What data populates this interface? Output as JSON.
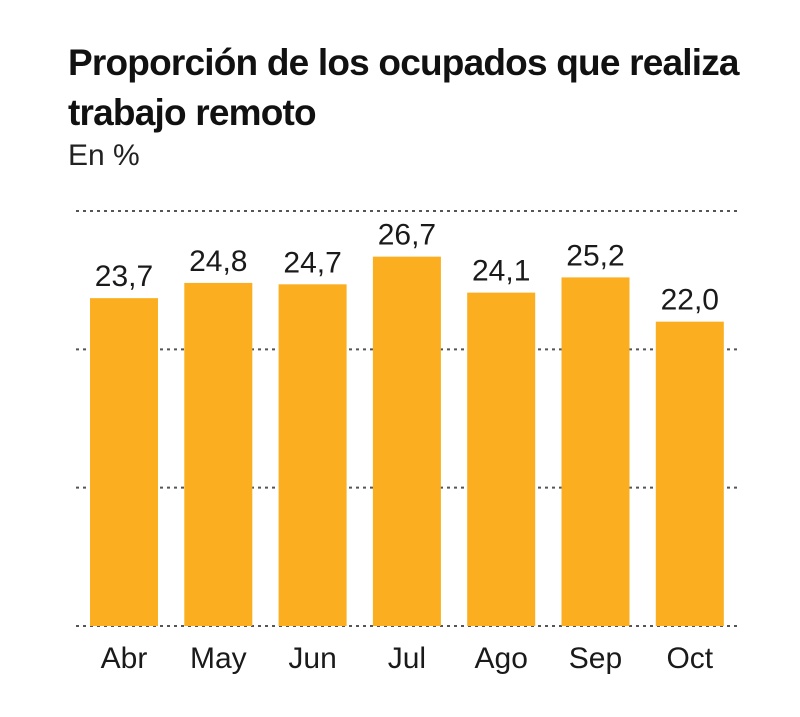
{
  "chart_data": {
    "type": "bar",
    "title": "Proporción de los ocupados que realiza trabajo remoto",
    "subtitle": "En %",
    "categories": [
      "Abr",
      "May",
      "Jun",
      "Jul",
      "Ago",
      "Sep",
      "Oct"
    ],
    "values": [
      23.7,
      24.8,
      24.7,
      26.7,
      24.1,
      25.2,
      22.0
    ],
    "data_labels": [
      "23,7",
      "24,8",
      "24,7",
      "26,7",
      "24,1",
      "25,2",
      "22,0"
    ],
    "ylim": [
      0,
      30
    ],
    "gridlines": [
      0,
      10,
      20,
      30
    ],
    "grid": true,
    "legend": "none",
    "bar_color": "#FBAE1F",
    "grid_color": "#555555"
  }
}
